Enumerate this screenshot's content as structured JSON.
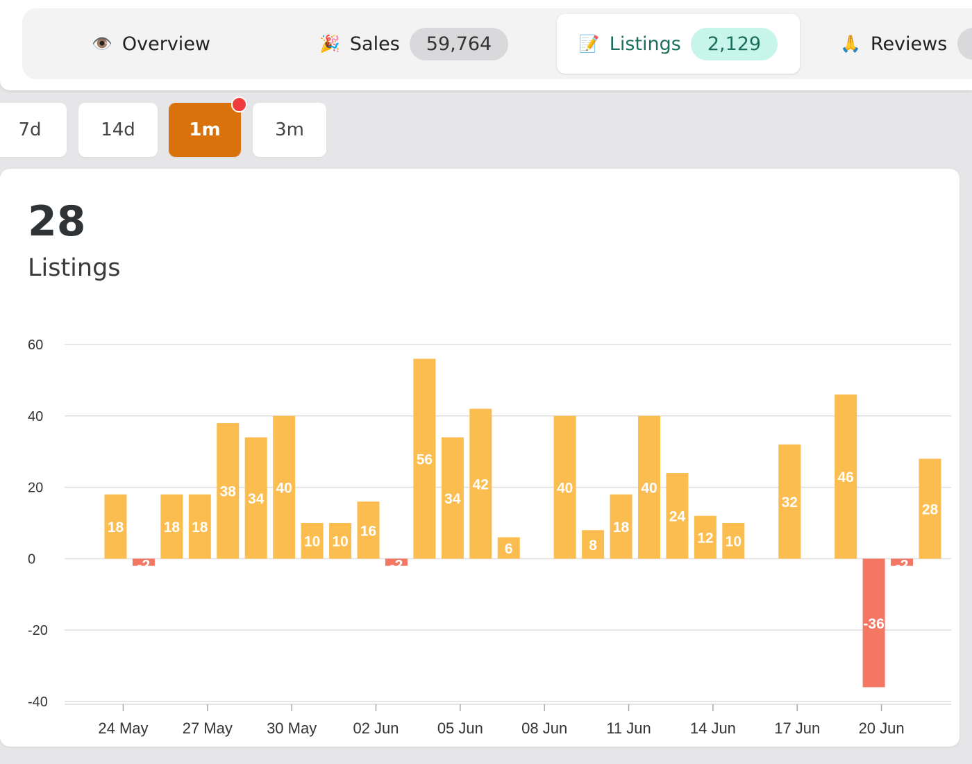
{
  "tabs": {
    "overview": {
      "icon": "eye-icon",
      "emoji": "👁️",
      "label": "Overview"
    },
    "sales": {
      "icon": "party-popper-icon",
      "emoji": "🎉",
      "label": "Sales",
      "count": "59,764"
    },
    "listings": {
      "icon": "memo-icon",
      "emoji": "📝",
      "label": "Listings",
      "count": "2,129",
      "active": true
    },
    "reviews": {
      "icon": "folded-hands-icon",
      "emoji": "🙏",
      "label": "Reviews"
    }
  },
  "ranges": [
    {
      "label": "7d"
    },
    {
      "label": "14d"
    },
    {
      "label": "1m",
      "active": true
    },
    {
      "label": "3m"
    }
  ],
  "summary": {
    "value": "28",
    "label": "Listings"
  },
  "colors": {
    "positive": "#fbbd4f",
    "negative": "#f47764",
    "active_range": "#d9720a",
    "notification": "#ef3b3b"
  },
  "chart_data": {
    "type": "bar",
    "x": [
      "23 May",
      "24 May",
      "25 May",
      "26 May",
      "27 May",
      "28 May",
      "29 May",
      "30 May",
      "31 May",
      "01 Jun",
      "02 Jun",
      "03 Jun",
      "04 Jun",
      "05 Jun",
      "06 Jun",
      "07 Jun",
      "08 Jun",
      "09 Jun",
      "10 Jun",
      "11 Jun",
      "12 Jun",
      "13 Jun",
      "14 Jun",
      "15 Jun",
      "16 Jun",
      "17 Jun",
      "18 Jun",
      "19 Jun",
      "20 Jun",
      "21 Jun",
      "22 Jun",
      "23 Jun"
    ],
    "values": [
      0,
      18,
      -2,
      18,
      18,
      38,
      34,
      40,
      10,
      10,
      16,
      -2,
      56,
      34,
      42,
      6,
      0,
      40,
      8,
      18,
      40,
      24,
      12,
      10,
      0,
      32,
      0,
      46,
      -36,
      -2,
      28,
      null
    ],
    "x_tick_labels": [
      "24 May",
      "27 May",
      "30 May",
      "02 Jun",
      "05 Jun",
      "08 Jun",
      "11 Jun",
      "14 Jun",
      "17 Jun",
      "20 Jun"
    ],
    "y_ticks": [
      60,
      40,
      20,
      0,
      -20,
      -40
    ],
    "ylim": [
      -40,
      60
    ],
    "grid": true,
    "legend": "none",
    "title": "",
    "xlabel": "",
    "ylabel": ""
  }
}
